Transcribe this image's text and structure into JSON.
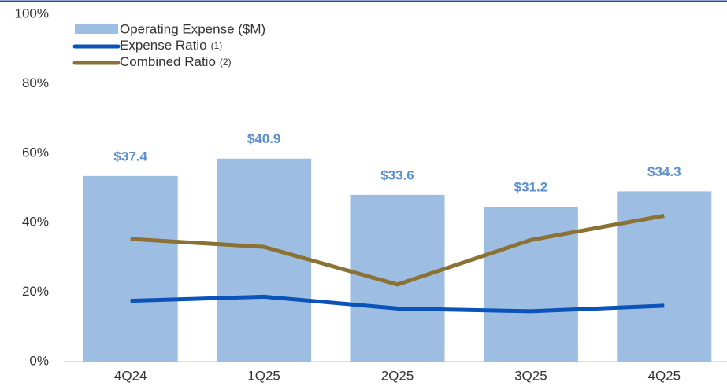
{
  "chart_data": {
    "type": "bar_line",
    "categories": [
      "4Q24",
      "1Q25",
      "2Q25",
      "3Q25",
      "4Q25"
    ],
    "bars": {
      "name": "Operating Expense ($M)",
      "color": "#9dbde3",
      "label_color": "#5b8fd0",
      "axis": "y2",
      "values": [
        37.4,
        40.9,
        33.6,
        31.2,
        34.3
      ],
      "value_labels": [
        "$37.4",
        "$40.9",
        "$33.6",
        "$31.2",
        "$34.3"
      ]
    },
    "series": [
      {
        "name": "Expense Ratio",
        "footnote": "(1)",
        "color": "#0a53b8",
        "values": [
          17.5,
          18.7,
          15.3,
          14.5,
          16.1
        ]
      },
      {
        "name": "Combined Ratio",
        "footnote": "(2)",
        "color": "#8b7234",
        "values": [
          35.3,
          33.0,
          22.2,
          35.0,
          42.0
        ]
      }
    ],
    "ylim": [
      0,
      100
    ],
    "yticks": [
      {
        "value": 0,
        "label": "0%"
      },
      {
        "value": 20,
        "label": "20%"
      },
      {
        "value": 40,
        "label": "40%"
      },
      {
        "value": 60,
        "label": "60%"
      },
      {
        "value": 80,
        "label": "80%"
      },
      {
        "value": 100,
        "label": "100%"
      }
    ],
    "y2lim": [
      0,
      70
    ]
  }
}
